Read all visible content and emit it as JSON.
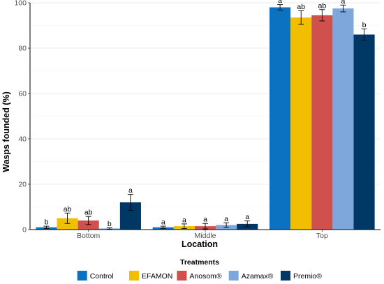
{
  "chart_data": {
    "type": "bar",
    "xlabel": "Location",
    "ylabel": "Wasps founded (%)",
    "ylim": [
      0,
      100
    ],
    "yticks": [
      0,
      20,
      40,
      60,
      80,
      100
    ],
    "grid": true,
    "legend_position": "bottom",
    "legend_title": "Treatments",
    "categories": [
      "Bottom",
      "Middle",
      "Top"
    ],
    "series": [
      {
        "name": "Control",
        "color": "#0a72c0",
        "values": [
          1,
          1,
          98
        ],
        "errors": [
          0.5,
          0.5,
          1.2
        ],
        "letters": [
          "b",
          "a",
          "a"
        ]
      },
      {
        "name": "EFAMON",
        "color": "#f0bf00",
        "values": [
          5,
          1.5,
          93.5
        ],
        "errors": [
          2.3,
          1.0,
          3.0
        ],
        "letters": [
          "ab",
          "a",
          "ab"
        ]
      },
      {
        "name": "Anosom®",
        "color": "#cf504c",
        "values": [
          4,
          1.5,
          94.5
        ],
        "errors": [
          1.8,
          1.2,
          2.5
        ],
        "letters": [
          "ab",
          "a",
          "ab"
        ]
      },
      {
        "name": "Azamax®",
        "color": "#7ea7dc",
        "values": [
          0.5,
          2,
          97.5
        ],
        "errors": [
          0.3,
          1.0,
          1.5
        ],
        "letters": [
          "b",
          "a",
          "a"
        ]
      },
      {
        "name": "Premio®",
        "color": "#003865",
        "values": [
          12,
          2.5,
          86
        ],
        "errors": [
          3.5,
          1.3,
          2.5
        ],
        "letters": [
          "a",
          "a",
          "b"
        ]
      }
    ]
  }
}
